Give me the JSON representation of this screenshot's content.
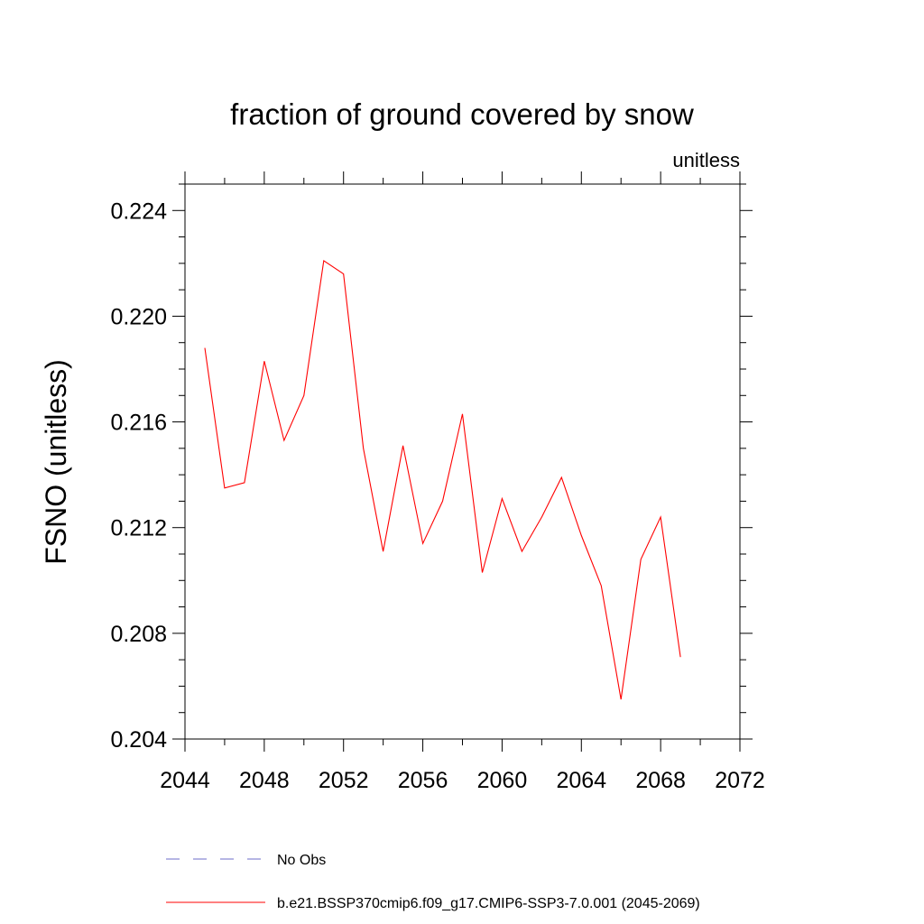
{
  "chart_data": {
    "type": "line",
    "title": "fraction of ground covered by snow",
    "units_label": "unitless",
    "xlabel": "",
    "ylabel": "FSNO  (unitless)",
    "xlim": [
      2044,
      2072
    ],
    "ylim": [
      0.204,
      0.225
    ],
    "xticks": [
      2044,
      2048,
      2052,
      2056,
      2060,
      2064,
      2068,
      2072
    ],
    "xtick_labels": [
      "2044",
      "2048",
      "2052",
      "2056",
      "2060",
      "2064",
      "2068",
      "2072"
    ],
    "yticks": [
      0.204,
      0.208,
      0.212,
      0.216,
      0.22,
      0.224
    ],
    "ytick_labels": [
      "0.204",
      "0.208",
      "0.212",
      "0.216",
      "0.220",
      "0.224"
    ],
    "grid": false,
    "legend_position": "bottom",
    "series": [
      {
        "name": "b.e21.BSSP370cmip6.f09_g17.CMIP6-SSP3-7.0.001 (2045-2069)",
        "color": "#ff0000",
        "style": "solid",
        "x": [
          2045,
          2046,
          2047,
          2048,
          2049,
          2050,
          2051,
          2052,
          2053,
          2054,
          2055,
          2056,
          2057,
          2058,
          2059,
          2060,
          2061,
          2062,
          2063,
          2064,
          2065,
          2066,
          2067,
          2068,
          2069
        ],
        "values": [
          0.2188,
          0.2135,
          0.2137,
          0.2183,
          0.2153,
          0.217,
          0.2221,
          0.2216,
          0.215,
          0.2111,
          0.2151,
          0.2114,
          0.213,
          0.2163,
          0.2103,
          0.2131,
          0.2111,
          0.2124,
          0.2139,
          0.2117,
          0.2098,
          0.2055,
          0.2108,
          0.2124,
          0.2071
        ]
      }
    ],
    "legend": [
      {
        "label": "No Obs",
        "color": "#6e6ec8",
        "style": "dashed"
      },
      {
        "label": "b.e21.BSSP370cmip6.f09_g17.CMIP6-SSP3-7.0.001 (2045-2069)",
        "color": "#ff0000",
        "style": "solid"
      }
    ]
  }
}
